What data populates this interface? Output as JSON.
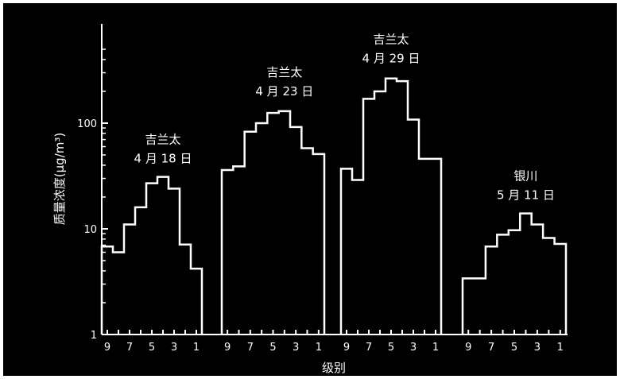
{
  "chart_data": {
    "type": "histogram",
    "title": "",
    "xlabel": "级别",
    "ylabel": "质量浓度(μg/m³)",
    "y_scale": "log",
    "ylim": [
      1,
      500
    ],
    "y_tick_labels": [
      "1",
      "10",
      "100"
    ],
    "x_tick_labels": [
      "9",
      "7",
      "5",
      "3",
      "1"
    ],
    "background": "#000000",
    "line_color": "#ffffff",
    "panels": [
      {
        "location": "吉兰太",
        "date": "4 月 18 日",
        "levels": [
          9,
          8,
          7,
          6,
          5,
          4,
          3,
          2,
          1
        ],
        "values": [
          6.8,
          6.0,
          11,
          16,
          27,
          31,
          24,
          7.1,
          4.2
        ]
      },
      {
        "location": "吉兰太",
        "date": "4 月 23 日",
        "levels": [
          9,
          8,
          7,
          6,
          5,
          4,
          3,
          2,
          1
        ],
        "values": [
          36,
          39,
          83,
          100,
          125,
          130,
          92,
          58,
          51
        ]
      },
      {
        "location": "吉兰太",
        "date": "4 月 29 日",
        "levels": [
          9,
          8,
          7,
          6,
          5,
          4,
          3,
          2,
          1
        ],
        "values": [
          37,
          29,
          170,
          200,
          265,
          250,
          108,
          46,
          46
        ]
      },
      {
        "location": "银川",
        "date": "5 月 11 日",
        "levels": [
          9,
          8,
          7,
          6,
          5,
          4,
          3,
          2,
          1
        ],
        "values": [
          3.4,
          3.4,
          6.8,
          8.8,
          9.7,
          14,
          11,
          8.2,
          7.2
        ]
      }
    ]
  }
}
